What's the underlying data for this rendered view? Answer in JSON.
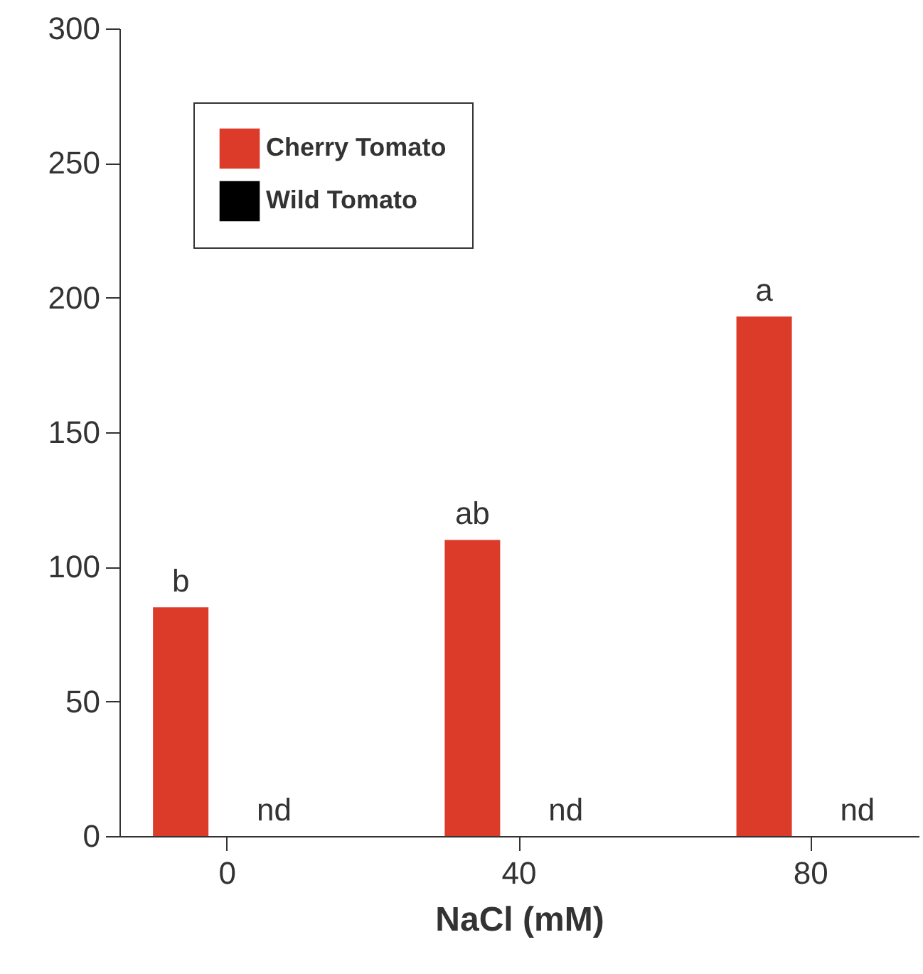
{
  "chart_data": {
    "type": "bar",
    "xlabel": "NaCl (mM)",
    "categories": [
      "0",
      "40",
      "80"
    ],
    "series": [
      {
        "name": "Cherry Tomato",
        "color": "#dc3b2a",
        "values": [
          85,
          110,
          193
        ]
      },
      {
        "name": "Wild Tomato",
        "color": "#000000",
        "values": [
          null,
          null,
          null
        ]
      }
    ],
    "ylim": [
      0,
      300
    ],
    "yticks": [
      0,
      50,
      100,
      150,
      200,
      250,
      300
    ],
    "grid": false,
    "legend": "top left",
    "annotations": [
      "b",
      "ab",
      "a",
      "nd",
      "nd",
      "nd"
    ]
  }
}
